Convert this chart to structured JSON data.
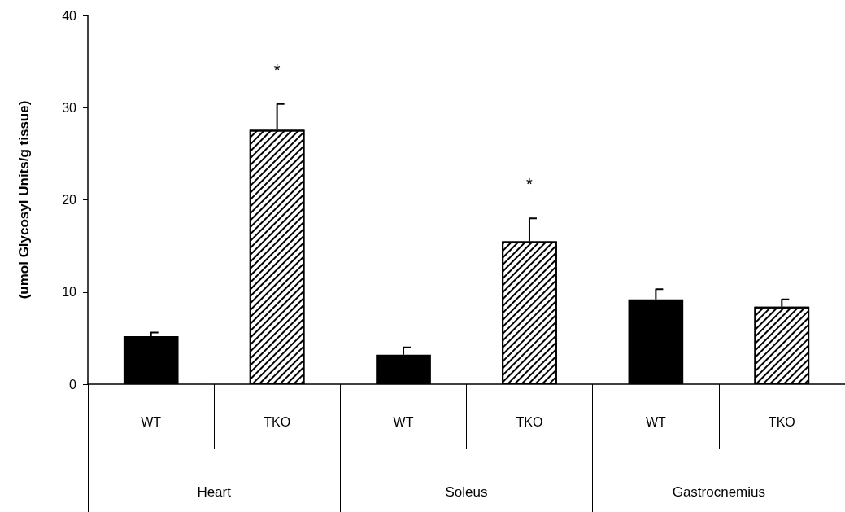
{
  "chart_data": {
    "type": "bar",
    "ylabel": "(umol Glycosyl Units/g tissue)",
    "categories": [
      "Heart",
      "Soleus",
      "Gastrocnemius"
    ],
    "series": [
      {
        "name": "WT",
        "color": "#000000",
        "values": [
          5.2,
          3.2,
          9.2
        ],
        "errors": [
          [
            5.2,
            5.6
          ],
          [
            3.2,
            4.0
          ],
          [
            9.2,
            10.3
          ]
        ]
      },
      {
        "name": "TKO",
        "color": "#ffffff",
        "values": [
          27.6,
          15.5,
          8.4
        ],
        "errors": [
          [
            27.6,
            30.4
          ],
          [
            15.5,
            18.0
          ],
          [
            8.4,
            9.2
          ]
        ],
        "value_labels": [
          "*",
          "*",
          null
        ]
      }
    ],
    "ylim": [
      0,
      40
    ],
    "yticks": [
      0,
      10,
      20,
      30,
      40
    ],
    "grid": false,
    "legend": false
  }
}
